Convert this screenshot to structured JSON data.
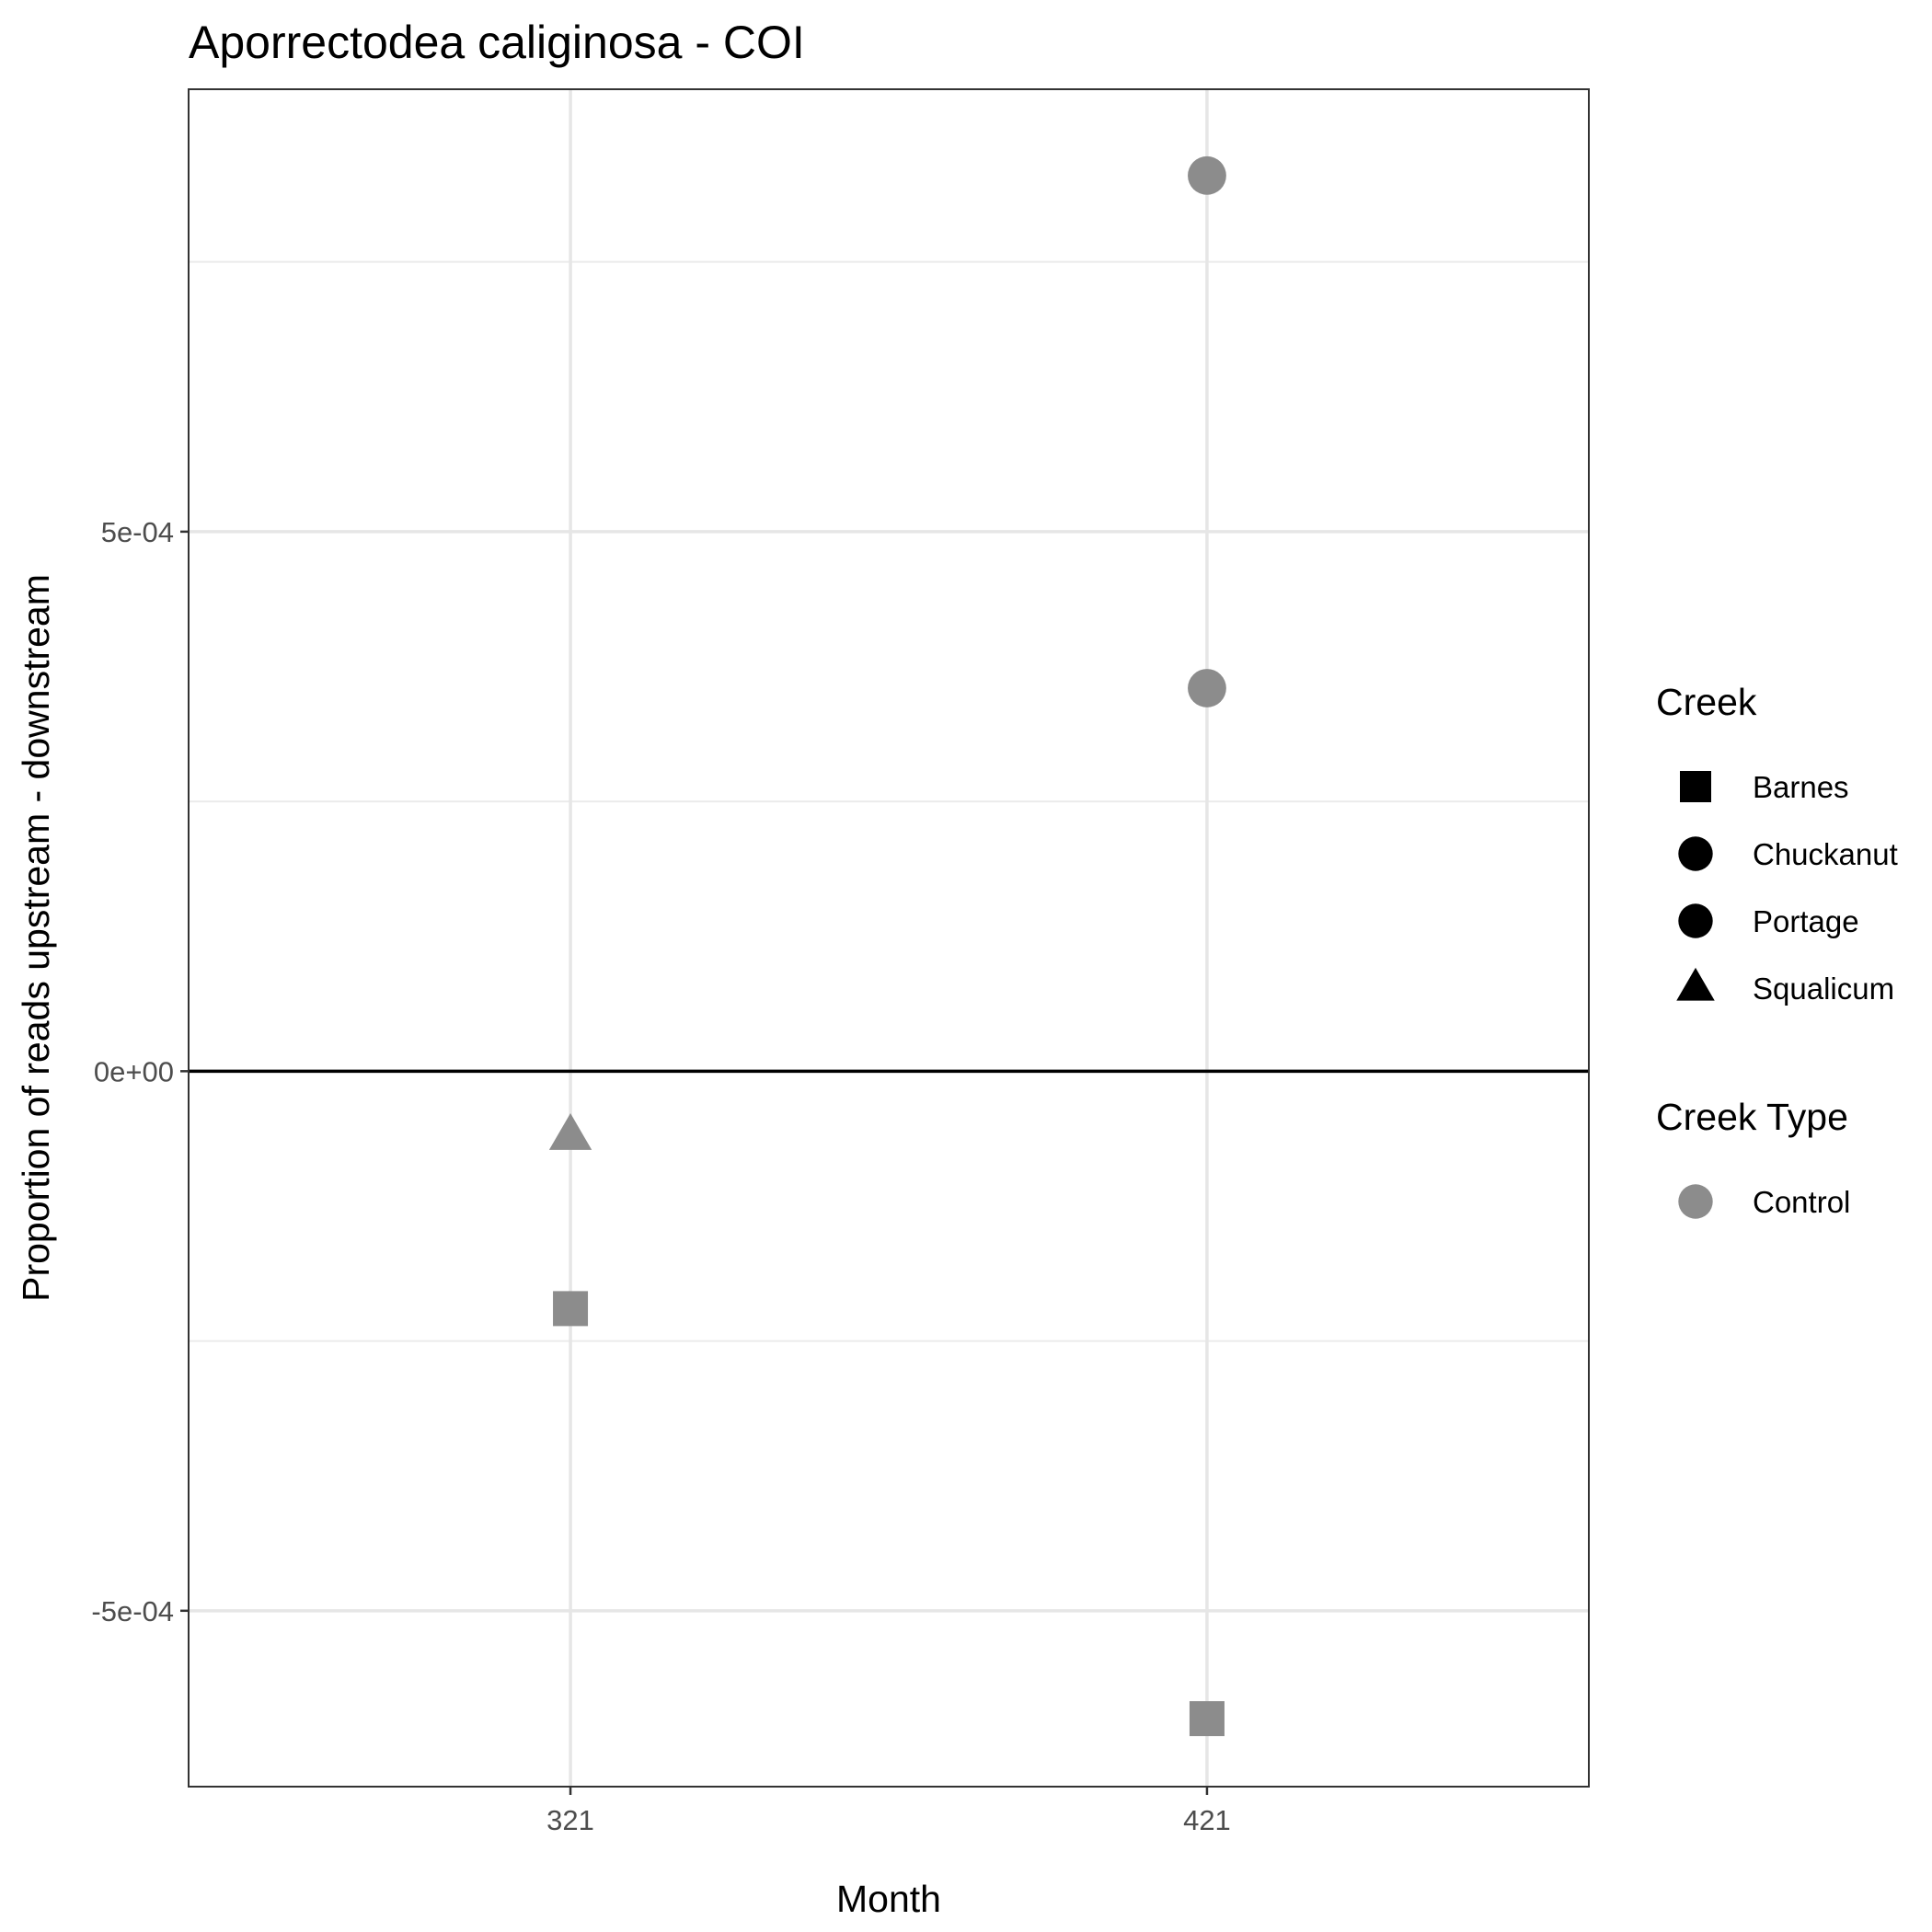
{
  "chart_data": {
    "type": "scatter",
    "title": "Aporrectodea caliginosa - COI",
    "xlabel": "Month",
    "ylabel": "Proportion of reads upstream - downstream",
    "x_categories": [
      "321",
      "421"
    ],
    "ylim": [
      -0.000663,
      0.00091
    ],
    "y_ticks": [
      {
        "value": 0.0005,
        "label": "5e-04"
      },
      {
        "value": 0.0,
        "label": "0e+00"
      },
      {
        "value": -0.0005,
        "label": "-5e-04"
      }
    ],
    "grid": true,
    "reference_line_y": 0,
    "legend_position": "right",
    "points": [
      {
        "x": "321",
        "y": -6e-05,
        "creek": "Squalicum",
        "creek_type": "Control"
      },
      {
        "x": "321",
        "y": -0.00022,
        "creek": "Barnes",
        "creek_type": "Control"
      },
      {
        "x": "421",
        "y": 0.00083,
        "creek": "Chuckanut",
        "creek_type": "Control"
      },
      {
        "x": "421",
        "y": 0.000355,
        "creek": "Portage",
        "creek_type": "Control"
      },
      {
        "x": "421",
        "y": -0.0006,
        "creek": "Barnes",
        "creek_type": "Control"
      }
    ],
    "legends": [
      {
        "title": "Creek",
        "items": [
          {
            "label": "Barnes",
            "shape": "square",
            "color": "#000000"
          },
          {
            "label": "Chuckanut",
            "shape": "circle",
            "color": "#000000"
          },
          {
            "label": "Portage",
            "shape": "circle",
            "color": "#000000"
          },
          {
            "label": "Squalicum",
            "shape": "triangle",
            "color": "#000000"
          }
        ]
      },
      {
        "title": "Creek Type",
        "items": [
          {
            "label": "Control",
            "shape": "circle",
            "color": "#8c8c8c"
          }
        ]
      }
    ],
    "point_color": "#8c8c8c",
    "shape_map": {
      "Barnes": "square",
      "Chuckanut": "circle",
      "Portage": "circle",
      "Squalicum": "triangle"
    }
  }
}
